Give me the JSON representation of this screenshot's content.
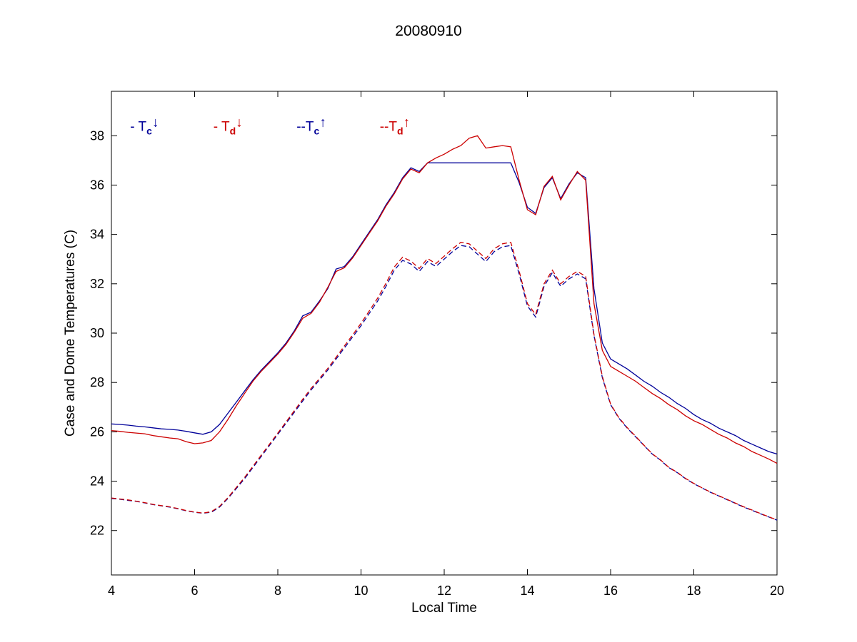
{
  "chart_data": {
    "type": "line",
    "title": "20080910",
    "xlabel": "Local Time",
    "ylabel": "Case and Dome Temperatures (C)",
    "xlim": [
      4,
      20
    ],
    "ylim": [
      20.2,
      39.8
    ],
    "x_ticks": [
      4,
      6,
      8,
      10,
      12,
      14,
      16,
      18,
      20
    ],
    "y_ticks": [
      22,
      24,
      26,
      28,
      30,
      32,
      34,
      36,
      38
    ],
    "grid": false,
    "legend_position": "text annotations inside plot, top-left",
    "colors": {
      "blue": "#000099",
      "red": "#CC0000"
    },
    "x": [
      4,
      4.2,
      4.4,
      4.6,
      4.8,
      5,
      5.2,
      5.4,
      5.6,
      5.8,
      6,
      6.2,
      6.4,
      6.6,
      6.8,
      7,
      7.2,
      7.4,
      7.6,
      7.8,
      8,
      8.2,
      8.4,
      8.6,
      8.8,
      9,
      9.2,
      9.4,
      9.6,
      9.8,
      10,
      10.2,
      10.4,
      10.6,
      10.8,
      11,
      11.2,
      11.4,
      11.6,
      11.8,
      12,
      12.2,
      12.4,
      12.6,
      12.8,
      13,
      13.2,
      13.4,
      13.6,
      13.8,
      14,
      14.2,
      14.4,
      14.6,
      14.8,
      15,
      15.2,
      15.4,
      15.6,
      15.8,
      16,
      16.2,
      16.4,
      16.6,
      16.8,
      17,
      17.2,
      17.4,
      17.6,
      17.8,
      18,
      18.2,
      18.4,
      18.6,
      18.8,
      19,
      19.2,
      19.4,
      19.6,
      19.8,
      20
    ],
    "series": [
      {
        "name": "Tc-down",
        "label": "- Tc (down)",
        "style": "solid",
        "color": "#000099",
        "values": [
          26.32,
          26.3,
          26.27,
          26.23,
          26.2,
          26.16,
          26.12,
          26.1,
          26.07,
          26.02,
          25.96,
          25.9,
          26,
          26.3,
          26.75,
          27.2,
          27.65,
          28.1,
          28.5,
          28.85,
          29.2,
          29.6,
          30.1,
          30.7,
          30.85,
          31.3,
          31.8,
          32.6,
          32.7,
          33.1,
          33.6,
          34.1,
          34.6,
          35.2,
          35.7,
          36.3,
          36.7,
          36.55,
          36.9,
          36.9,
          36.9,
          36.9,
          36.9,
          36.9,
          36.9,
          36.9,
          36.9,
          36.9,
          36.9,
          36.1,
          35.1,
          34.85,
          35.9,
          36.3,
          35.45,
          36.05,
          36.5,
          36.3,
          31.8,
          29.6,
          28.95,
          28.75,
          28.55,
          28.3,
          28.05,
          27.85,
          27.6,
          27.4,
          27.15,
          26.95,
          26.7,
          26.5,
          26.35,
          26.15,
          26,
          25.85,
          25.65,
          25.5,
          25.35,
          25.2,
          25.1
        ]
      },
      {
        "name": "Td-down",
        "label": "- Td (down)",
        "style": "solid",
        "color": "#CC0000",
        "values": [
          26.05,
          26.02,
          25.98,
          25.95,
          25.92,
          25.85,
          25.8,
          25.75,
          25.72,
          25.6,
          25.52,
          25.55,
          25.65,
          26,
          26.5,
          27.05,
          27.55,
          28.05,
          28.45,
          28.8,
          29.15,
          29.55,
          30.05,
          30.6,
          30.8,
          31.25,
          31.85,
          32.5,
          32.65,
          33.05,
          33.55,
          34.05,
          34.55,
          35.15,
          35.65,
          36.25,
          36.65,
          36.5,
          36.9,
          37.1,
          37.25,
          37.45,
          37.6,
          37.9,
          38,
          37.5,
          37.55,
          37.6,
          37.55,
          36.2,
          35,
          34.8,
          35.95,
          36.35,
          35.4,
          36,
          36.55,
          36.2,
          31.2,
          29.3,
          28.65,
          28.45,
          28.25,
          28.05,
          27.8,
          27.55,
          27.35,
          27.1,
          26.9,
          26.65,
          26.45,
          26.3,
          26.1,
          25.9,
          25.75,
          25.55,
          25.4,
          25.2,
          25.05,
          24.9,
          24.72
        ]
      },
      {
        "name": "Tc-up",
        "label": "-- Tc (up)",
        "style": "dashed",
        "color": "#000099",
        "values": [
          23.3,
          23.27,
          23.22,
          23.18,
          23.12,
          23.05,
          23,
          22.95,
          22.88,
          22.8,
          22.74,
          22.7,
          22.74,
          22.95,
          23.3,
          23.7,
          24.1,
          24.55,
          25,
          25.45,
          25.9,
          26.35,
          26.8,
          27.25,
          27.7,
          28.1,
          28.5,
          28.95,
          29.4,
          29.85,
          30.3,
          30.8,
          31.3,
          31.9,
          32.55,
          32.95,
          32.8,
          32.5,
          32.9,
          32.7,
          33,
          33.3,
          33.55,
          33.5,
          33.2,
          32.9,
          33.3,
          33.5,
          33.55,
          32.4,
          31.1,
          30.65,
          31.9,
          32.45,
          31.9,
          32.2,
          32.4,
          32.2,
          29.9,
          28.2,
          27.1,
          26.55,
          26.15,
          25.8,
          25.45,
          25.1,
          24.85,
          24.55,
          24.35,
          24.1,
          23.9,
          23.72,
          23.55,
          23.4,
          23.25,
          23.1,
          22.95,
          22.82,
          22.68,
          22.55,
          22.42
        ]
      },
      {
        "name": "Td-up",
        "label": "-- Td (up)",
        "style": "dashed",
        "color": "#CC0000",
        "values": [
          23.32,
          23.28,
          23.24,
          23.19,
          23.13,
          23.06,
          23.01,
          22.96,
          22.89,
          22.81,
          22.75,
          22.71,
          22.76,
          22.98,
          23.33,
          23.74,
          24.15,
          24.6,
          25.05,
          25.5,
          25.95,
          26.4,
          26.86,
          27.32,
          27.76,
          28.16,
          28.57,
          29.02,
          29.48,
          29.93,
          30.4,
          30.9,
          31.42,
          32.02,
          32.68,
          33.08,
          32.92,
          32.62,
          33.02,
          32.82,
          33.12,
          33.42,
          33.68,
          33.62,
          33.32,
          33.02,
          33.42,
          33.62,
          33.68,
          32.52,
          31.2,
          30.75,
          32,
          32.55,
          32,
          32.3,
          32.5,
          32.3,
          29.95,
          28.25,
          27.12,
          26.57,
          26.17,
          25.82,
          25.46,
          25.11,
          24.86,
          24.56,
          24.36,
          24.11,
          23.91,
          23.73,
          23.56,
          23.41,
          23.26,
          23.11,
          22.96,
          22.83,
          22.69,
          22.56,
          22.43
        ]
      }
    ],
    "annotations": [
      {
        "prefix": "- ",
        "base": "T",
        "sub": "c",
        "arrow": "↓",
        "color": "#000099",
        "x": 4.45,
        "y": 38.2
      },
      {
        "prefix": "- ",
        "base": "T",
        "sub": "d",
        "arrow": "↓",
        "color": "#CC0000",
        "x": 6.45,
        "y": 38.2
      },
      {
        "prefix": "--",
        "base": "T",
        "sub": "c",
        "arrow": "↑",
        "color": "#000099",
        "x": 8.45,
        "y": 38.2
      },
      {
        "prefix": "--",
        "base": "T",
        "sub": "d",
        "arrow": "↑",
        "color": "#CC0000",
        "x": 10.45,
        "y": 38.2
      }
    ]
  }
}
